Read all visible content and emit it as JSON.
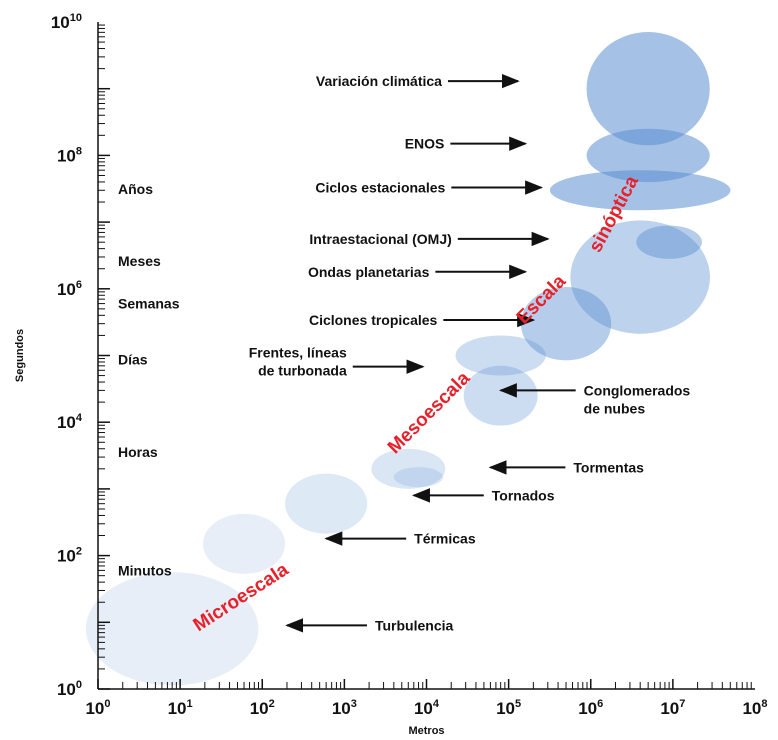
{
  "chart_data": {
    "type": "scatter",
    "xlabel": "Metros",
    "ylabel": "Segundos",
    "xscale": "log",
    "yscale": "log",
    "xlim": [
      1,
      100000000
    ],
    "ylim": [
      1,
      10000000000
    ],
    "x_ticks": [
      {
        "base": "10",
        "exp": "0"
      },
      {
        "base": "10",
        "exp": "1"
      },
      {
        "base": "10",
        "exp": "2"
      },
      {
        "base": "10",
        "exp": "3"
      },
      {
        "base": "10",
        "exp": "4"
      },
      {
        "base": "10",
        "exp": "5"
      },
      {
        "base": "10",
        "exp": "6"
      },
      {
        "base": "10",
        "exp": "7"
      },
      {
        "base": "10",
        "exp": "8"
      }
    ],
    "y_ticks": [
      {
        "base": "10",
        "exp": "0"
      },
      {
        "base": "10",
        "exp": "2"
      },
      {
        "base": "10",
        "exp": "4"
      },
      {
        "base": "10",
        "exp": "6"
      },
      {
        "base": "10",
        "exp": "8"
      },
      {
        "base": "10",
        "exp": "10"
      }
    ],
    "time_labels": [
      {
        "text": "Años",
        "y": 31536000
      },
      {
        "text": "Meses",
        "y": 2600000
      },
      {
        "text": "Semanas",
        "y": 600000
      },
      {
        "text": "Días",
        "y": 86400
      },
      {
        "text": "Horas",
        "y": 3600
      },
      {
        "text": "Minutos",
        "y": 60
      }
    ],
    "phenomena": [
      {
        "name": "Variación climática",
        "x": 5000000,
        "y": 1000000000,
        "rx_dec": 0.75,
        "ry_dec": 0.85,
        "opacity": 0.55
      },
      {
        "name": "ENOS",
        "x": 5000000,
        "y": 100000000,
        "rx_dec": 0.75,
        "ry_dec": 0.4,
        "opacity": 0.55
      },
      {
        "name": "Ciclos estacionales",
        "x": 4000000,
        "y": 30000000,
        "rx_dec": 1.1,
        "ry_dec": 0.3,
        "opacity": 0.55
      },
      {
        "name": "Intraestacional (OMJ)",
        "x": 9000000,
        "y": 5000000,
        "rx_dec": 0.4,
        "ry_dec": 0.25,
        "opacity": 0.45
      },
      {
        "name": "Ondas planetarias",
        "x": 4000000,
        "y": 1500000,
        "rx_dec": 0.85,
        "ry_dec": 0.85,
        "opacity": 0.4
      },
      {
        "name": "Ciclones tropicales",
        "x": 500000,
        "y": 300000,
        "rx_dec": 0.55,
        "ry_dec": 0.55,
        "opacity": 0.45
      },
      {
        "name": "Frentes, líneas de turbonada",
        "x": 80000,
        "y": 100000,
        "rx_dec": 0.55,
        "ry_dec": 0.3,
        "opacity": 0.3
      },
      {
        "name": "Conglomerados de nubes",
        "x": 80000,
        "y": 25000,
        "rx_dec": 0.45,
        "ry_dec": 0.45,
        "opacity": 0.3
      },
      {
        "name": "Tormentas",
        "x": 6000,
        "y": 2000,
        "rx_dec": 0.45,
        "ry_dec": 0.3,
        "opacity": 0.22
      },
      {
        "name": "Tornados",
        "x": 8000,
        "y": 1500,
        "rx_dec": 0.3,
        "ry_dec": 0.15,
        "opacity": 0.2
      },
      {
        "name": "Térmicas",
        "x": 600,
        "y": 600,
        "rx_dec": 0.5,
        "ry_dec": 0.45,
        "opacity": 0.2
      },
      {
        "name": "Térmicas",
        "x": 60,
        "y": 150,
        "rx_dec": 0.5,
        "ry_dec": 0.45,
        "opacity": 0.15
      },
      {
        "name": "Turbulencia",
        "x": 8,
        "y": 8,
        "rx_dec": 1.05,
        "ry_dec": 0.85,
        "opacity": 0.15
      }
    ],
    "annotations": [
      {
        "lines": [
          "Variación climática"
        ],
        "x": 700000,
        "y": 1300000000,
        "dir": "right",
        "arrow_to": 130000,
        "arrow_y": 1300000000
      },
      {
        "lines": [
          "ENOS"
        ],
        "x": 500000,
        "y": 150000000,
        "dir": "right",
        "arrow_to": 160000,
        "arrow_y": 150000000
      },
      {
        "lines": [
          "Ciclos estacionales"
        ],
        "x": 1000000,
        "y": 33000000,
        "dir": "right",
        "arrow_to": 250000,
        "arrow_y": 33000000
      },
      {
        "lines": [
          "Intraestacional (OMJ)"
        ],
        "x": 1000000,
        "y": 5600000,
        "dir": "right",
        "arrow_to": 300000,
        "arrow_y": 5600000
      },
      {
        "lines": [
          "Ondas planetarias"
        ],
        "x": 1000000,
        "y": 1800000,
        "dir": "right",
        "arrow_to": 160000,
        "arrow_y": 1800000
      },
      {
        "lines": [
          "Ciclones tropicales"
        ],
        "x": 1000000,
        "y": 340000,
        "dir": "right",
        "arrow_to": 200000,
        "arrow_y": 340000
      },
      {
        "lines": [
          "Frentes, líneas",
          "de turbonada"
        ],
        "x": 1000000,
        "y": 68000,
        "dir": "right",
        "arrow_to": 9000,
        "arrow_y": 68000
      },
      {
        "lines": [
          "Conglomerados",
          "de nubes"
        ],
        "x": 500000,
        "y": 30000,
        "dir": "left",
        "arrow_to": 80000,
        "arrow_y": 30000
      },
      {
        "lines": [
          "Tormentas"
        ],
        "x": 300000,
        "y": 2100,
        "dir": "left",
        "arrow_to": 60000,
        "arrow_y": 2100
      },
      {
        "lines": [
          "Tornados"
        ],
        "x": 300000,
        "y": 800,
        "dir": "left",
        "arrow_to": 7000,
        "arrow_y": 800
      },
      {
        "lines": [
          "Térmicas"
        ],
        "x": 300000,
        "y": 180,
        "dir": "left",
        "arrow_to": 600,
        "arrow_y": 180
      },
      {
        "lines": [
          "Turbulencia"
        ],
        "x": 300000,
        "y": 9,
        "dir": "left",
        "arrow_to": 200,
        "arrow_y": 9
      }
    ],
    "scale_labels": [
      {
        "text": "Microescala",
        "x": 60,
        "y": 20,
        "angle": -33
      },
      {
        "text": "Mesoescala",
        "x": 12000,
        "y": 12000,
        "angle": -45
      },
      {
        "text": "Escala",
        "x": 280000,
        "y": 600000,
        "angle": -45
      },
      {
        "text": "sinóptica",
        "x": 2200000,
        "y": 12000000,
        "angle": -62
      }
    ],
    "grid": false,
    "colors": {
      "blob": "#5b8fd1",
      "scale_text": "#e8202a",
      "axis": "#111111"
    }
  }
}
